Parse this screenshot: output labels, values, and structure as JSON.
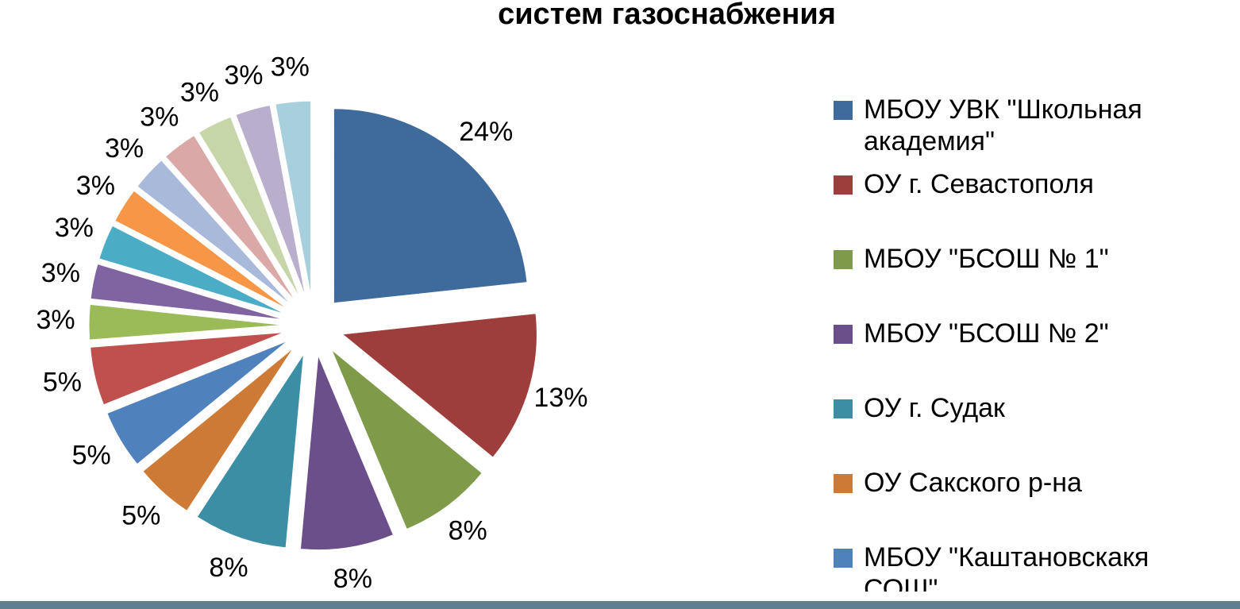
{
  "chart_data": {
    "type": "pie",
    "title": "систем газоснабжения",
    "categories": [
      "МБОУ УВК \"Школьная академия\"",
      "ОУ г. Севастополя",
      "МБОУ \"БСОШ № 1\"",
      "МБОУ \"БСОШ № 2\"",
      "ОУ г. Судак",
      "ОУ Сакского р-на",
      "МБОУ \"Каштановскакя СОШ\"",
      null,
      null,
      null,
      null,
      null,
      null,
      null,
      null,
      null,
      null
    ],
    "values": [
      24,
      13,
      8,
      8,
      8,
      5,
      5,
      5,
      3,
      3,
      3,
      3,
      3,
      3,
      3,
      3,
      3
    ],
    "value_labels": [
      "24%",
      "13%",
      "8%",
      "8%",
      "8%",
      "5%",
      "5%",
      "5%",
      "3%",
      "3%",
      "3%",
      "3%",
      "3%",
      "3%",
      "3%",
      "3%",
      "3%"
    ],
    "colors": [
      "#3f6a9c",
      "#9e3e3c",
      "#7f9a48",
      "#6a4f8a",
      "#3b8ea3",
      "#cd7a37",
      "#4f81bd",
      "#c0504d",
      "#9bbb59",
      "#8064a2",
      "#4bacc6",
      "#f79646",
      "#a9b9d9",
      "#d9a8a7",
      "#c6d6a8",
      "#b9aecb",
      "#a8cfdc"
    ],
    "legend": "right"
  }
}
